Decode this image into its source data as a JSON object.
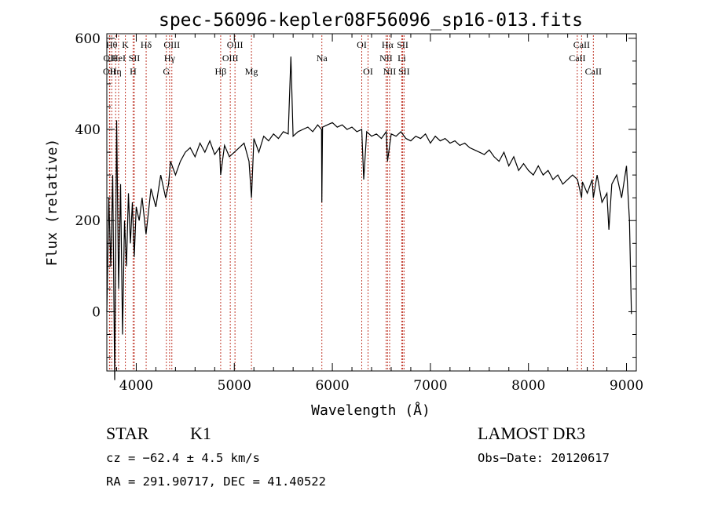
{
  "chart_data": {
    "type": "line",
    "title": "spec-56096-kepler08F56096_sp16-013.fits",
    "xlabel": "Wavelength (Å)",
    "ylabel": "Flux (relative)",
    "xlim": [
      3700,
      9100
    ],
    "ylim": [
      -130,
      610
    ],
    "xticks": [
      4000,
      5000,
      6000,
      7000,
      8000,
      9000
    ],
    "yticks": [
      0,
      200,
      400,
      600
    ],
    "series": [
      {
        "name": "flux",
        "x": [
          3700,
          3720,
          3740,
          3760,
          3780,
          3800,
          3820,
          3840,
          3860,
          3880,
          3900,
          3920,
          3940,
          3960,
          3980,
          4000,
          4030,
          4060,
          4100,
          4150,
          4200,
          4250,
          4300,
          4330,
          4350,
          4400,
          4450,
          4500,
          4550,
          4600,
          4650,
          4700,
          4750,
          4800,
          4850,
          4861,
          4900,
          4950,
          5000,
          5050,
          5100,
          5150,
          5175,
          5200,
          5250,
          5300,
          5350,
          5400,
          5450,
          5500,
          5550,
          5577,
          5600,
          5650,
          5700,
          5750,
          5800,
          5850,
          5890,
          5893,
          5900,
          5950,
          6000,
          6050,
          6100,
          6150,
          6200,
          6250,
          6300,
          6320,
          6350,
          6400,
          6450,
          6500,
          6550,
          6563,
          6600,
          6650,
          6700,
          6750,
          6800,
          6850,
          6900,
          6950,
          7000,
          7050,
          7100,
          7150,
          7200,
          7250,
          7300,
          7350,
          7400,
          7450,
          7500,
          7550,
          7600,
          7650,
          7700,
          7750,
          7800,
          7850,
          7900,
          7950,
          8000,
          8050,
          8100,
          8150,
          8200,
          8250,
          8300,
          8350,
          8400,
          8450,
          8500,
          8542,
          8550,
          8600,
          8650,
          8662,
          8700,
          8750,
          8800,
          8820,
          8850,
          8900,
          8950,
          9000,
          9030,
          9050
        ],
        "y": [
          0,
          250,
          100,
          300,
          -150,
          420,
          50,
          280,
          -50,
          200,
          100,
          260,
          150,
          240,
          120,
          230,
          200,
          250,
          170,
          270,
          230,
          300,
          250,
          280,
          330,
          300,
          330,
          350,
          360,
          340,
          370,
          350,
          375,
          345,
          360,
          300,
          365,
          340,
          350,
          360,
          370,
          330,
          250,
          380,
          350,
          385,
          375,
          390,
          380,
          395,
          390,
          560,
          385,
          395,
          400,
          405,
          395,
          410,
          400,
          240,
          405,
          410,
          415,
          405,
          410,
          400,
          405,
          395,
          400,
          290,
          395,
          385,
          390,
          380,
          395,
          330,
          390,
          385,
          395,
          380,
          375,
          385,
          380,
          390,
          370,
          385,
          375,
          380,
          370,
          375,
          365,
          370,
          360,
          355,
          350,
          345,
          355,
          340,
          330,
          350,
          320,
          340,
          310,
          325,
          310,
          300,
          320,
          300,
          310,
          290,
          300,
          280,
          290,
          300,
          290,
          250,
          285,
          260,
          290,
          250,
          300,
          240,
          260,
          180,
          280,
          300,
          250,
          320,
          200,
          -5
        ]
      }
    ],
    "annotations": [
      {
        "wavelength": 3727,
        "labels": [
          "OII"
        ],
        "row": 3
      },
      {
        "wavelength": 3730,
        "labels": [
          "OII"
        ],
        "row": 2
      },
      {
        "wavelength": 3750,
        "labels": [
          "Hθ"
        ],
        "row": 1
      },
      {
        "wavelength": 3790,
        "labels": [
          "Hη"
        ],
        "row": 3
      },
      {
        "wavelength": 3820,
        "labels": [
          "HeI"
        ],
        "row": 2
      },
      {
        "wavelength": 3889,
        "labels": [
          "K"
        ],
        "row": 1
      },
      {
        "wavelength": 3968,
        "labels": [
          "H"
        ],
        "row": 3
      },
      {
        "wavelength": 3980,
        "labels": [
          "SII"
        ],
        "row": 2
      },
      {
        "wavelength": 4101,
        "labels": [
          "Hδ"
        ],
        "row": 1
      },
      {
        "wavelength": 4307,
        "labels": [
          "G"
        ],
        "row": 3
      },
      {
        "wavelength": 4340,
        "labels": [
          "Hγ"
        ],
        "row": 2
      },
      {
        "wavelength": 4363,
        "labels": [
          "OIII"
        ],
        "row": 1
      },
      {
        "wavelength": 4861,
        "labels": [
          "Hβ"
        ],
        "row": 3
      },
      {
        "wavelength": 4959,
        "labels": [
          "OIII"
        ],
        "row": 2
      },
      {
        "wavelength": 5007,
        "labels": [
          "OIII"
        ],
        "row": 1
      },
      {
        "wavelength": 5175,
        "labels": [
          "Mg"
        ],
        "row": 3
      },
      {
        "wavelength": 5893,
        "labels": [
          "Na"
        ],
        "row": 2
      },
      {
        "wavelength": 6300,
        "labels": [
          "OI"
        ],
        "row": 1
      },
      {
        "wavelength": 6364,
        "labels": [
          "OI"
        ],
        "row": 3
      },
      {
        "wavelength": 6548,
        "labels": [
          "NII"
        ],
        "row": 2
      },
      {
        "wavelength": 6563,
        "labels": [
          "Hα"
        ],
        "row": 1
      },
      {
        "wavelength": 6584,
        "labels": [
          "NII"
        ],
        "row": 3
      },
      {
        "wavelength": 6708,
        "labels": [
          "Li"
        ],
        "row": 2
      },
      {
        "wavelength": 6717,
        "labels": [
          "SII"
        ],
        "row": 1
      },
      {
        "wavelength": 6731,
        "labels": [
          "SII"
        ],
        "row": 3
      },
      {
        "wavelength": 8498,
        "labels": [
          "CaII"
        ],
        "row": 2
      },
      {
        "wavelength": 8542,
        "labels": [
          "CaII"
        ],
        "row": 1
      },
      {
        "wavelength": 8662,
        "labels": [
          "CaII"
        ],
        "row": 3
      }
    ]
  },
  "info": {
    "class": "STAR",
    "subclass": "K1",
    "survey": "LAMOST DR3",
    "cz": "cz = −62.4 ± 4.5 km/s",
    "obs_date": "Obs−Date: 20120617",
    "radec": "RA = 291.90717, DEC =  41.40522"
  },
  "colors": {
    "line_marker": "#c0392b",
    "spectrum": "#000000"
  }
}
